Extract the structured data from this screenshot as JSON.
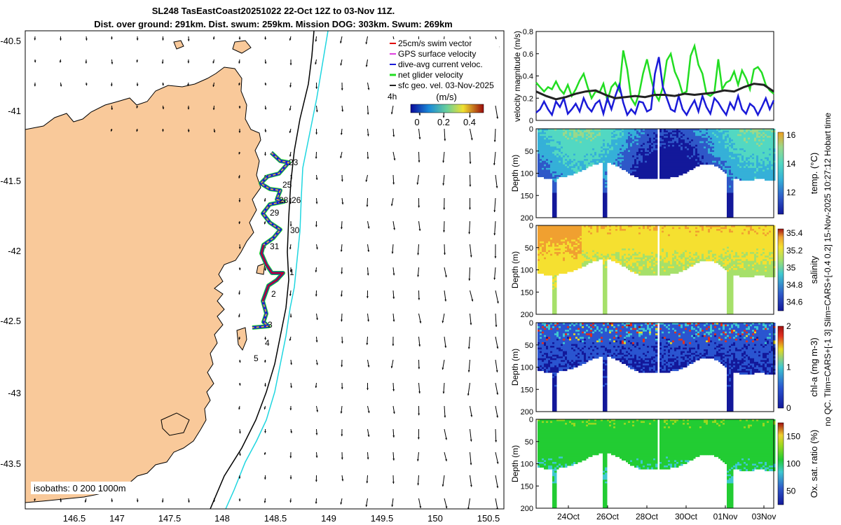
{
  "title_line1": "SL248 TasEastCoast20251022 22-Oct 12Z to 03-Nov 11Z.",
  "title_line2": "Dist. over ground: 291km. Dist. swum: 259km. Mission DOG: 303km. Swum: 269km",
  "side_note": "no QC. Tlim=CARS+[-1 3] Slim=CARS+[-0.4 0.2] 15-Nov-2025 10:27:12 Hobart time",
  "colors": {
    "land": "#f9c99a",
    "swim": "#e00000",
    "gps": "#e040e0",
    "diveavg": "#1a1ad8",
    "net": "#22dd22",
    "sfc": "#222222",
    "isobath200": "#000000",
    "isobath1000": "#1fd6e0"
  },
  "map": {
    "xticks": [
      "146.5",
      "147",
      "147.5",
      "148",
      "148.5",
      "149",
      "149.5",
      "150",
      "150.5"
    ],
    "yticks": [
      "-40.5",
      "-41",
      "-41.5",
      "-42",
      "-42.5",
      "-43",
      "-43.5"
    ],
    "legend": {
      "items": [
        {
          "label": "25cm/s swim vector",
          "color": "#e00000"
        },
        {
          "label": "GPS surface velocity",
          "color": "#e040e0"
        },
        {
          "label": "dive-avg current veloc.",
          "color": "#1a1ad8"
        },
        {
          "label": "net glider velocity",
          "color": "#22dd22"
        },
        {
          "label": "sfc geo. vel. 03-Nov-2025",
          "color": "#222222"
        }
      ],
      "extra": "4h"
    },
    "colorbar": {
      "label": "(m/s)",
      "ticks": [
        "0",
        "0.2",
        "0.4"
      ]
    },
    "day_labels": [
      "23",
      "25",
      "26",
      "28",
      "29",
      "30",
      "31",
      "1",
      "2",
      "3",
      "4",
      "5"
    ],
    "isobaths_text": "isobaths: 0   200  1000m"
  },
  "chart_data": [
    {
      "type": "line",
      "title": "",
      "ylabel": "velocity magnitude (m/s)",
      "ylim": [
        0,
        0.8
      ],
      "yticks": [
        "0",
        "0.2",
        "0.4",
        "0.6",
        "0.8"
      ],
      "x_range_days": [
        22.5,
        34.5
      ],
      "series": [
        {
          "name": "net glider velocity",
          "color": "#22dd22",
          "x": [
            22.5,
            22.7,
            22.9,
            23.1,
            23.3,
            23.5,
            23.7,
            23.9,
            24.1,
            24.3,
            24.5,
            24.7,
            24.9,
            25.1,
            25.3,
            25.5,
            25.7,
            25.9,
            26.1,
            26.3,
            26.5,
            26.7,
            26.9,
            27.1,
            27.3,
            27.5,
            27.7,
            27.9,
            28.1,
            28.3,
            28.5,
            28.7,
            28.9,
            29.1,
            29.3,
            29.5,
            29.7,
            29.9,
            30.1,
            30.3,
            30.5,
            30.7,
            30.9,
            31.1,
            31.3,
            31.5,
            31.7,
            31.9,
            32.1,
            32.3,
            32.5,
            32.7,
            32.9,
            33.1,
            33.3,
            33.5,
            33.7,
            33.9,
            34.1,
            34.3,
            34.5
          ],
          "values": [
            0.34,
            0.3,
            0.26,
            0.3,
            0.28,
            0.35,
            0.28,
            0.24,
            0.32,
            0.22,
            0.28,
            0.36,
            0.42,
            0.3,
            0.2,
            0.26,
            0.25,
            0.33,
            0.18,
            0.3,
            0.34,
            0.27,
            0.63,
            0.46,
            0.2,
            0.14,
            0.24,
            0.42,
            0.55,
            0.38,
            0.24,
            0.18,
            0.3,
            0.54,
            0.6,
            0.44,
            0.36,
            0.24,
            0.26,
            0.58,
            0.67,
            0.5,
            0.42,
            0.24,
            0.22,
            0.25,
            0.55,
            0.28,
            0.34,
            0.36,
            0.44,
            0.32,
            0.45,
            0.38,
            0.28,
            0.46,
            0.48,
            0.43,
            0.32,
            0.27,
            0.24
          ]
        },
        {
          "name": "dive-avg current veloc.",
          "color": "#1a1ad8",
          "x": [
            22.5,
            22.7,
            22.9,
            23.1,
            23.3,
            23.5,
            23.7,
            23.9,
            24.1,
            24.3,
            24.5,
            24.7,
            24.9,
            25.1,
            25.3,
            25.5,
            25.7,
            25.9,
            26.1,
            26.3,
            26.5,
            26.7,
            26.9,
            27.1,
            27.3,
            27.5,
            27.7,
            27.9,
            28.1,
            28.3,
            28.5,
            28.7,
            28.9,
            29.1,
            29.3,
            29.5,
            29.7,
            29.9,
            30.1,
            30.3,
            30.5,
            30.7,
            30.9,
            31.1,
            31.3,
            31.5,
            31.7,
            31.9,
            32.1,
            32.3,
            32.5,
            32.7,
            32.9,
            33.1,
            33.3,
            33.5,
            33.7,
            33.9,
            34.1,
            34.3,
            34.5
          ],
          "values": [
            0.07,
            0.1,
            0.17,
            0.1,
            0.05,
            0.17,
            0.12,
            0.2,
            0.06,
            0.1,
            0.15,
            0.08,
            0.2,
            0.12,
            0.08,
            0.15,
            0.18,
            0.06,
            0.2,
            0.1,
            0.22,
            0.32,
            0.16,
            0.05,
            0.1,
            0.06,
            0.17,
            0.16,
            0.08,
            0.1,
            0.42,
            0.57,
            0.3,
            0.2,
            0.1,
            0.08,
            0.22,
            0.1,
            0.05,
            0.12,
            0.18,
            0.08,
            0.22,
            0.12,
            0.06,
            0.2,
            0.16,
            0.1,
            0.05,
            0.16,
            0.1,
            0.22,
            0.1,
            0.06,
            0.15,
            0.12,
            0.05,
            0.12,
            0.2,
            0.1,
            0.18
          ]
        },
        {
          "name": "sfc geo. vel.",
          "color": "#222222",
          "x": [
            22.5,
            23.0,
            23.5,
            24.0,
            24.5,
            25.0,
            25.5,
            26.0,
            26.5,
            27.0,
            27.5,
            28.0,
            28.5,
            29.0,
            29.5,
            30.0,
            30.5,
            31.0,
            31.5,
            32.0,
            32.5,
            33.0,
            33.5,
            34.0,
            34.5
          ],
          "values": [
            0.26,
            0.22,
            0.19,
            0.21,
            0.24,
            0.26,
            0.27,
            0.23,
            0.2,
            0.21,
            0.22,
            0.21,
            0.23,
            0.23,
            0.22,
            0.24,
            0.23,
            0.24,
            0.25,
            0.27,
            0.26,
            0.3,
            0.33,
            0.32,
            0.26
          ]
        }
      ]
    },
    {
      "type": "heatmap",
      "variable": "temp. (°C)",
      "ylabel": "Depth (m)",
      "ylim": [
        0,
        200
      ],
      "yticks": [
        "0",
        "50",
        "100",
        "150",
        "200"
      ],
      "clim": [
        10.5,
        16.2
      ],
      "cticks": [
        "12",
        "14",
        "16"
      ],
      "colors": [
        "#13189a",
        "#2f58c8",
        "#35b0d8",
        "#52d8c2",
        "#9ad88a",
        "#36a860"
      ]
    },
    {
      "type": "heatmap",
      "variable": "salinity",
      "ylabel": "Depth (m)",
      "ylim": [
        0,
        200
      ],
      "yticks": [
        "0",
        "50",
        "100",
        "150",
        "200"
      ],
      "clim": [
        34.5,
        35.45
      ],
      "cticks": [
        "34.6",
        "34.8",
        "35",
        "35.2",
        "35.4"
      ],
      "colors": [
        "#13189a",
        "#2f58c8",
        "#3fc8d0",
        "#a6e06a",
        "#f5e030",
        "#f0a030",
        "#d87020"
      ]
    },
    {
      "type": "heatmap",
      "variable": "chl-a (mg m-3)",
      "ylabel": "Depth (m)",
      "ylim": [
        0,
        200
      ],
      "yticks": [
        "0",
        "50",
        "100",
        "150",
        "200"
      ],
      "clim": [
        0,
        2
      ],
      "cticks": [
        "0",
        "1",
        "2"
      ],
      "colors": [
        "#13189a",
        "#2a55d0",
        "#3fc8d0",
        "#e8d820",
        "#e03020",
        "#a01010"
      ]
    },
    {
      "type": "heatmap",
      "variable": "Ox. sat. ratio (%)",
      "ylabel": "Depth (m)",
      "ylim": [
        0,
        200
      ],
      "yticks": [
        "0",
        "50",
        "100",
        "150",
        "200"
      ],
      "clim": [
        25,
        175
      ],
      "cticks": [
        "50",
        "100",
        "150"
      ],
      "xticks": [
        "24Oct",
        "26Oct",
        "28Oct",
        "30Oct",
        "01Nov",
        "03Nov"
      ],
      "colors": [
        "#13189a",
        "#2f58c8",
        "#3fc8d0",
        "#22cc33",
        "#9ad820",
        "#f0d030",
        "#c02010"
      ]
    }
  ]
}
